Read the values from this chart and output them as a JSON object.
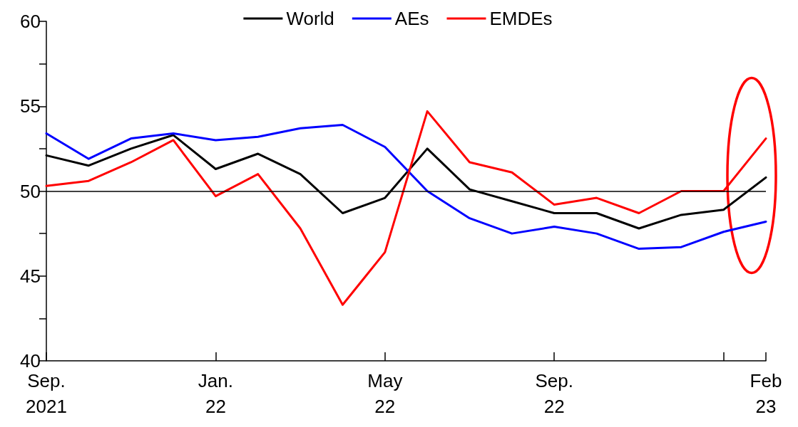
{
  "chart_data": {
    "type": "line",
    "categories": [
      "Sep.\n2021",
      null,
      null,
      null,
      "Jan.\n22",
      null,
      null,
      null,
      "May\n22",
      null,
      null,
      null,
      "Sep.\n22",
      null,
      null,
      null,
      null,
      "Feb\n23"
    ],
    "series": [
      {
        "name": "World",
        "color": "#000000",
        "values": [
          52.1,
          51.5,
          52.5,
          53.3,
          51.3,
          52.2,
          51.0,
          48.7,
          49.6,
          52.5,
          50.1,
          49.4,
          48.7,
          48.7,
          47.8,
          48.6,
          48.9,
          50.8
        ]
      },
      {
        "name": "AEs",
        "color": "#0000ff",
        "values": [
          53.4,
          51.9,
          53.1,
          53.4,
          53.0,
          53.2,
          53.7,
          53.9,
          52.6,
          50.0,
          48.4,
          47.5,
          47.9,
          47.5,
          46.6,
          46.7,
          47.6,
          48.2
        ]
      },
      {
        "name": "EMDEs",
        "color": "#ff0000",
        "values": [
          50.3,
          50.6,
          51.7,
          53.0,
          49.7,
          51.0,
          47.8,
          43.3,
          46.4,
          54.7,
          51.7,
          51.1,
          49.2,
          49.6,
          48.7,
          50.0,
          50.0,
          53.1
        ]
      }
    ],
    "ylim": [
      40,
      60
    ],
    "yticks": [
      40,
      {
        "value": 42.5,
        "label": null
      },
      45,
      {
        "value": 47.5,
        "label": null
      },
      50,
      {
        "value": 52.5,
        "label": null
      },
      55,
      {
        "value": 57.5,
        "label": null
      },
      60
    ],
    "ref_lines": [
      {
        "axis": "y",
        "value": 50,
        "color": "#000000"
      }
    ],
    "legend": "top",
    "grid": false,
    "marker": "none",
    "line_style": "solid"
  }
}
